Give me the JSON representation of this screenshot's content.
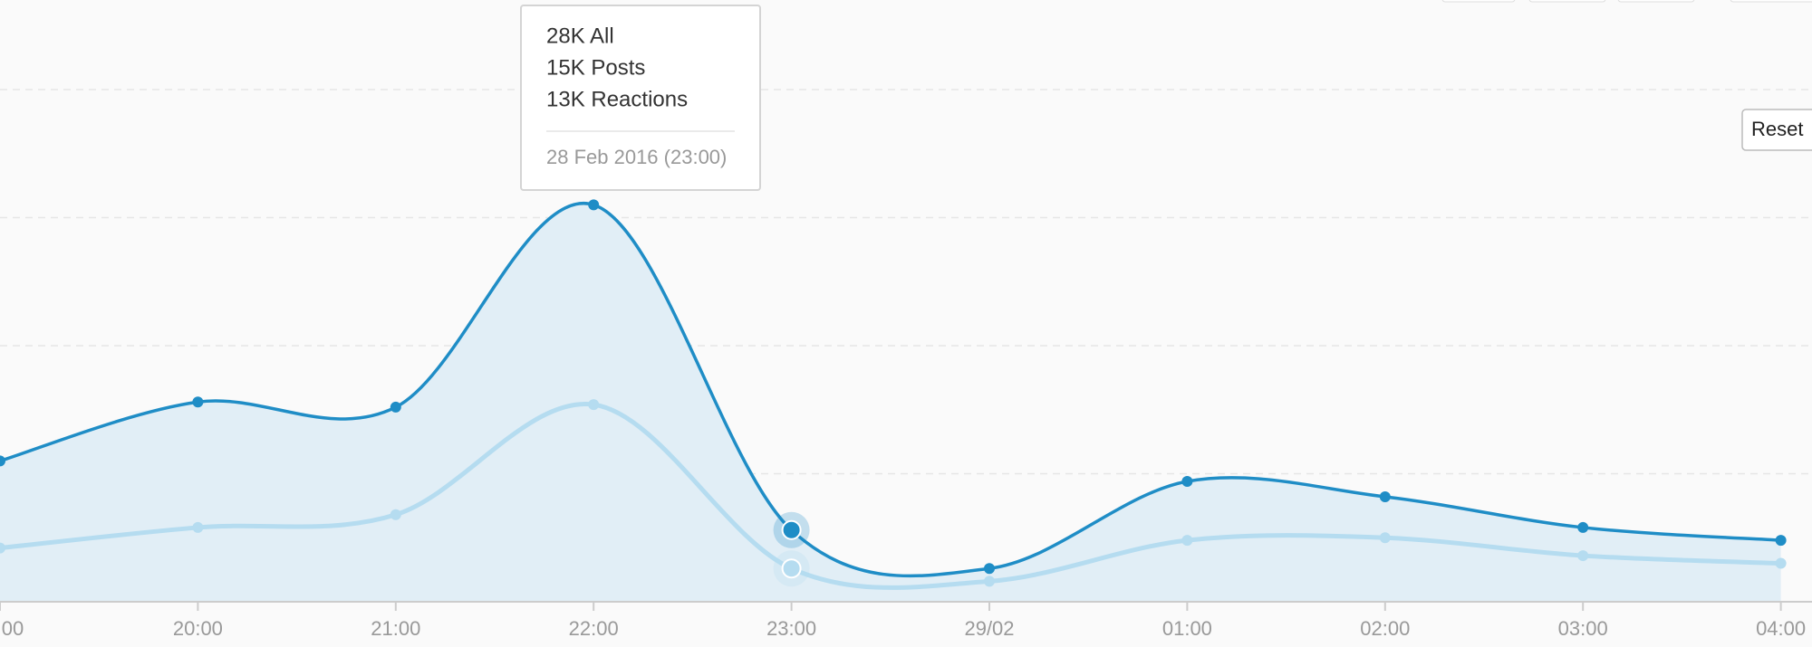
{
  "chart_data": {
    "type": "area",
    "categories": [
      "00",
      "20:00",
      "21:00",
      "22:00",
      "23:00",
      "29/02",
      "01:00",
      "02:00",
      "03:00",
      "04:00"
    ],
    "series": [
      {
        "name": "All",
        "color": "#1f8dc6",
        "values": [
          55,
          78,
          76,
          155,
          28,
          13,
          47,
          41,
          29,
          24
        ]
      },
      {
        "name": "Reactions",
        "color": "#b5dcf0",
        "values": [
          21,
          29,
          34,
          77,
          13,
          8,
          24,
          25,
          18,
          15
        ]
      }
    ],
    "ylim": [
      0,
      235
    ],
    "yticks": [
      50,
      100,
      150,
      200
    ],
    "grid": true,
    "tooltip": {
      "lines": [
        "28K All",
        "15K Posts",
        "13K Reactions"
      ],
      "date": "28 Feb 2016 (23:00)",
      "index": 4
    },
    "button": "Reset"
  }
}
